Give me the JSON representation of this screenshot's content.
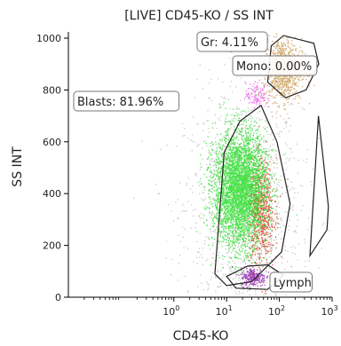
{
  "chart_data": {
    "type": "scatter",
    "title": "[LIVE] CD45-KO / SS INT",
    "xlabel": "CD45-KO",
    "ylabel": "SS INT",
    "x_scale": "log",
    "xlim": [
      0.01,
      1000
    ],
    "ylim": [
      0,
      1024
    ],
    "x_ticks": [
      {
        "value": 1,
        "label": "10",
        "sup": "0"
      },
      {
        "value": 10,
        "label": "10",
        "sup": "1"
      },
      {
        "value": 100,
        "label": "10",
        "sup": "2"
      },
      {
        "value": 1000,
        "label": "10",
        "sup": "3"
      }
    ],
    "y_ticks": [
      0,
      200,
      400,
      600,
      800,
      1000
    ],
    "gates": [
      {
        "name": "Blasts",
        "label": "Blasts: 81.96%",
        "color": "#22cc22",
        "polygon": [
          [
            6,
            90
          ],
          [
            9,
            560
          ],
          [
            18,
            680
          ],
          [
            45,
            740
          ],
          [
            90,
            600
          ],
          [
            160,
            360
          ],
          [
            110,
            175
          ],
          [
            30,
            60
          ],
          [
            10,
            45
          ]
        ]
      },
      {
        "name": "Gr",
        "label": "Gr: 4.11%",
        "color": "#c8883a",
        "polygon": [
          [
            130,
            770
          ],
          [
            60,
            830
          ],
          [
            70,
            970
          ],
          [
            120,
            1010
          ],
          [
            450,
            980
          ],
          [
            560,
            900
          ],
          [
            320,
            800
          ]
        ]
      },
      {
        "name": "Mono",
        "label": "Mono: 0.00%",
        "color": "#ff44ff",
        "polygon": []
      },
      {
        "name": "Lymph",
        "label": "Lymph",
        "color": "#8a1aa6",
        "polygon": [
          [
            10,
            80
          ],
          [
            25,
            120
          ],
          [
            60,
            125
          ],
          [
            120,
            85
          ],
          [
            60,
            30
          ],
          [
            15,
            35
          ]
        ]
      },
      {
        "name": "Unlabeled",
        "label": "",
        "color": "#444444",
        "polygon": [
          [
            550,
            700
          ],
          [
            480,
            500
          ],
          [
            380,
            160
          ],
          [
            800,
            260
          ],
          [
            850,
            350
          ]
        ]
      }
    ],
    "populations": [
      {
        "name": "Blasts",
        "color": "#22dd22",
        "center_log_x": 1.25,
        "center_y": 420,
        "spread_log_x": 0.25,
        "spread_y": 110
      },
      {
        "name": "Blasts-red",
        "color": "#dd3322",
        "center_log_x": 1.65,
        "center_y": 330,
        "spread_log_x": 0.12,
        "spread_y": 100
      },
      {
        "name": "Gr",
        "color": "#c89850",
        "center_log_x": 2.05,
        "center_y": 880,
        "spread_log_x": 0.18,
        "spread_y": 60
      },
      {
        "name": "Lymph",
        "color": "#8a1aa6",
        "center_log_x": 1.5,
        "center_y": 80,
        "spread_log_x": 0.12,
        "spread_y": 18
      },
      {
        "name": "Mono",
        "color": "#ee55ee",
        "center_log_x": 1.55,
        "center_y": 780,
        "spread_log_x": 0.1,
        "spread_y": 25
      },
      {
        "name": "Debris",
        "color": "#9a9a9a",
        "center_log_x": 1.3,
        "center_y": 350,
        "spread_log_x": 0.55,
        "spread_y": 220
      }
    ],
    "grid": false,
    "legend": "none"
  }
}
